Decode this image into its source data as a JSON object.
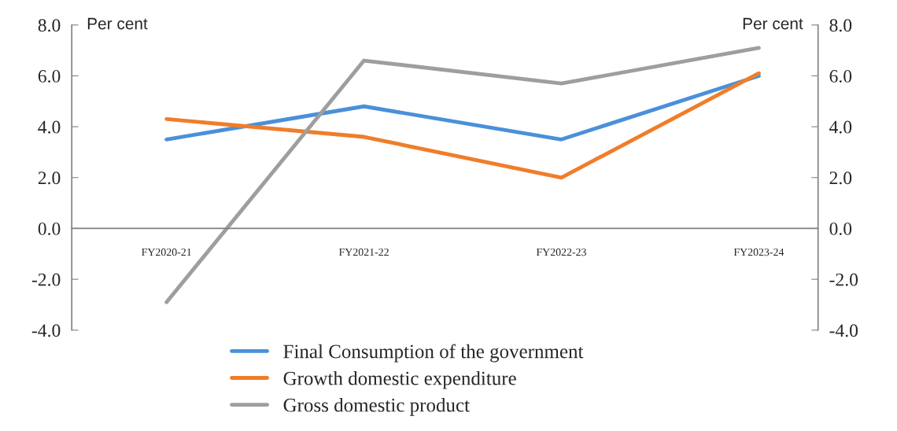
{
  "chart_data": {
    "type": "line",
    "categories": [
      "FY2020-21",
      "FY2021-22",
      "FY2022-23",
      "FY2023-24"
    ],
    "series": [
      {
        "name": "Final Consumption of the government",
        "color": "#4a90d9",
        "values": [
          3.5,
          4.8,
          3.5,
          6.0
        ]
      },
      {
        "name": "Growth domestic expenditure",
        "color": "#f07d2a",
        "values": [
          4.3,
          3.6,
          2.0,
          6.1
        ]
      },
      {
        "name": "Gross domestic product",
        "color": "#9e9e9e",
        "values": [
          -2.9,
          6.6,
          5.7,
          7.1
        ]
      }
    ],
    "ylabel": "Per cent",
    "y2label": "Per cent",
    "ylim": [
      -4,
      8
    ],
    "yticks": [
      {
        "value": -4,
        "label": "-4.0"
      },
      {
        "value": -2,
        "label": "-2.0"
      },
      {
        "value": 0,
        "label": "0.0"
      },
      {
        "value": 2,
        "label": "2.0"
      },
      {
        "value": 4,
        "label": "4.0"
      },
      {
        "value": 6,
        "label": "6.0"
      },
      {
        "value": 8,
        "label": "8.0"
      }
    ],
    "y2lim": [
      -4,
      8
    ],
    "y2ticks": [
      {
        "value": -4,
        "label": "-4.0"
      },
      {
        "value": -2,
        "label": "-2.0"
      },
      {
        "value": 0,
        "label": "0.0"
      },
      {
        "value": 2,
        "label": "2.0"
      },
      {
        "value": 4,
        "label": "4.0"
      },
      {
        "value": 6,
        "label": "6.0"
      },
      {
        "value": 8,
        "label": "8.0"
      }
    ],
    "grid": false,
    "legend": "bottom",
    "marker": "none",
    "line_style": "solid"
  }
}
